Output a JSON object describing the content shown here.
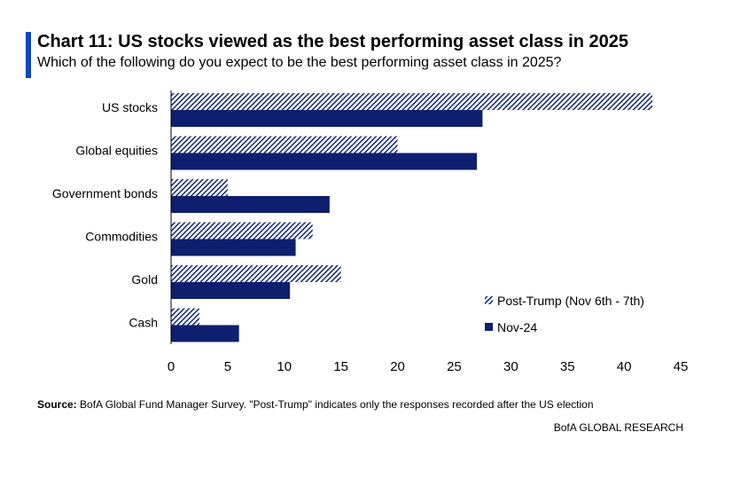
{
  "chart_data": {
    "type": "bar",
    "orientation": "horizontal",
    "title": "Chart 11: US stocks viewed as the best performing asset class in 2025",
    "subtitle": "Which of the following do you expect to be the best performing asset class in 2025?",
    "categories": [
      "US stocks",
      "Global equities",
      "Government bonds",
      "Commodities",
      "Gold",
      "Cash"
    ],
    "series": [
      {
        "name": "Post-Trump (Nov 6th - 7th)",
        "values": [
          42.5,
          20,
          5,
          12.5,
          15,
          2.5
        ],
        "color": "#1a2f7a",
        "pattern": "diagonal-hatch"
      },
      {
        "name": "Nov-24",
        "values": [
          27.5,
          27,
          14,
          11,
          10.5,
          6
        ],
        "color": "#0d1f6e",
        "pattern": "solid"
      }
    ],
    "xlim": [
      0,
      45
    ],
    "xticks": [
      "0",
      "5",
      "10",
      "15",
      "20",
      "25",
      "30",
      "35",
      "40",
      "45"
    ],
    "grid": false,
    "legend_position": "bottom-right"
  },
  "footer": {
    "source_label": "Source:",
    "source_text": " BofA Global Fund Manager Survey. \"Post-Trump\" indicates only the responses recorded after the US election",
    "brand": "BofA GLOBAL RESEARCH"
  },
  "colors": {
    "accent": "#0a46c8",
    "navy": "#0d1f6e"
  }
}
